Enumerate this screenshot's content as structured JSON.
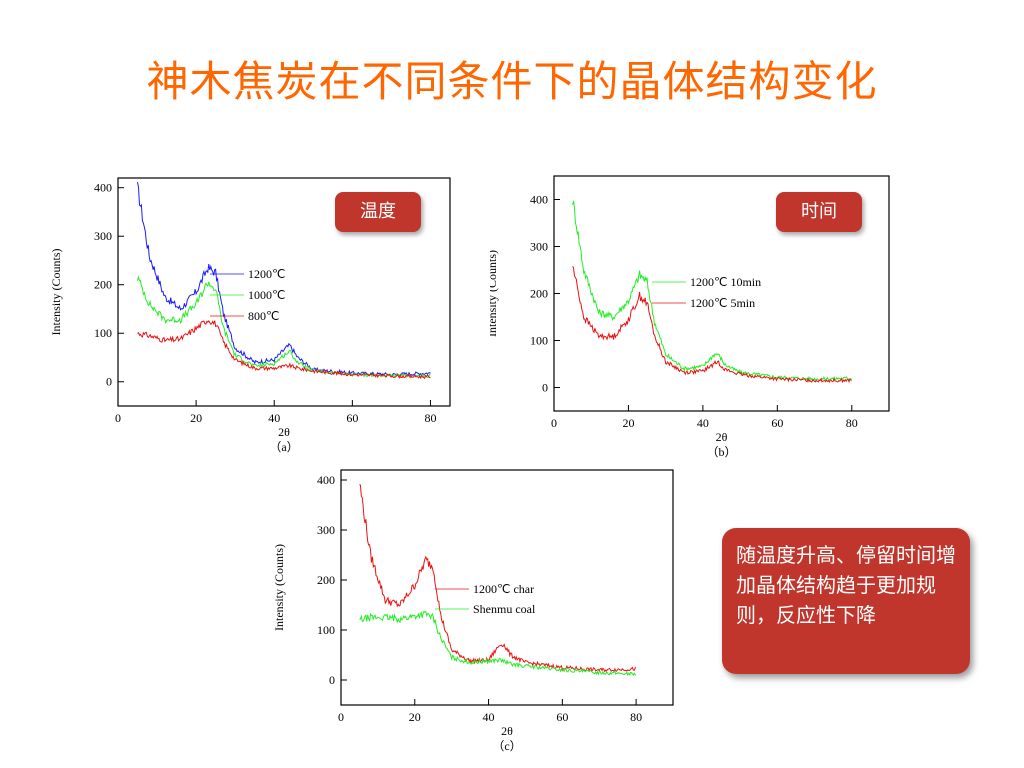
{
  "slide": {
    "title": "神木焦炭在不同条件下的晶体结构变化",
    "conclusion": "随温度升高、停留时间增加晶体结构趋于更加规则，反应性下降"
  },
  "colors": {
    "title": "#ff6600",
    "badge": "#c0362c",
    "blue": "#1a1aff",
    "green": "#22ee22",
    "red": "#ee1111"
  },
  "chart_data": [
    {
      "type": "line",
      "panel": "（a）",
      "badge": "温度",
      "xlabel": "2θ",
      "ylabel": "Intensity (Counts)",
      "xlim": [
        0,
        85
      ],
      "ylim": [
        -50,
        420
      ],
      "xticks": [
        0,
        20,
        40,
        60,
        80
      ],
      "yticks": [
        0,
        100,
        200,
        300,
        400
      ],
      "series": [
        {
          "name": "1200℃",
          "color": "#1a1aff",
          "x": [
            5,
            8,
            12,
            16,
            20,
            23,
            25,
            27,
            30,
            35,
            40,
            43,
            44,
            46,
            50,
            60,
            70,
            80
          ],
          "y": [
            400,
            260,
            175,
            150,
            185,
            235,
            225,
            140,
            70,
            40,
            45,
            70,
            75,
            50,
            25,
            18,
            15,
            18
          ]
        },
        {
          "name": "1000℃",
          "color": "#22ee22",
          "x": [
            5,
            8,
            12,
            16,
            20,
            23,
            25,
            27,
            30,
            35,
            40,
            43,
            44,
            46,
            50,
            60,
            70,
            80
          ],
          "y": [
            215,
            160,
            128,
            128,
            160,
            205,
            190,
            110,
            55,
            32,
            38,
            58,
            62,
            40,
            22,
            15,
            12,
            12
          ]
        },
        {
          "name": "800℃",
          "color": "#ee1111",
          "x": [
            5,
            8,
            12,
            16,
            20,
            23,
            25,
            27,
            30,
            35,
            40,
            43,
            44,
            46,
            50,
            60,
            70,
            80
          ],
          "y": [
            100,
            95,
            85,
            88,
            110,
            128,
            120,
            82,
            45,
            28,
            28,
            32,
            33,
            28,
            22,
            15,
            12,
            10
          ]
        }
      ]
    },
    {
      "type": "line",
      "panel": "（b）",
      "badge": "时间",
      "xlabel": "2θ",
      "ylabel": "Intensity (Counts)",
      "xlim": [
        0,
        90
      ],
      "ylim": [
        -50,
        450
      ],
      "xticks": [
        0,
        20,
        40,
        60,
        80
      ],
      "yticks": [
        0,
        100,
        200,
        300,
        400
      ],
      "series": [
        {
          "name": "1200℃ 10min",
          "color": "#22ee22",
          "x": [
            5,
            8,
            12,
            16,
            20,
            23,
            25,
            27,
            30,
            35,
            40,
            43,
            44,
            46,
            50,
            60,
            70,
            80
          ],
          "y": [
            400,
            250,
            160,
            150,
            185,
            240,
            225,
            140,
            70,
            40,
            45,
            70,
            72,
            48,
            32,
            22,
            18,
            20
          ]
        },
        {
          "name": "1200℃  5min",
          "color": "#ee1111",
          "x": [
            5,
            8,
            12,
            16,
            20,
            23,
            25,
            27,
            30,
            35,
            40,
            43,
            44,
            46,
            50,
            60,
            70,
            80
          ],
          "y": [
            260,
            150,
            110,
            108,
            145,
            195,
            180,
            110,
            55,
            32,
            35,
            50,
            55,
            38,
            28,
            18,
            15,
            15
          ]
        }
      ]
    },
    {
      "type": "line",
      "panel": "（c）",
      "xlabel": "2θ",
      "ylabel": "Intensity (Counts)",
      "xlim": [
        0,
        90
      ],
      "ylim": [
        -50,
        420
      ],
      "xticks": [
        0,
        20,
        40,
        60,
        80
      ],
      "yticks": [
        0,
        100,
        200,
        300,
        400
      ],
      "series": [
        {
          "name": "1200℃ char",
          "color": "#ee1111",
          "x": [
            5,
            8,
            12,
            16,
            20,
            23,
            25,
            27,
            30,
            35,
            40,
            43,
            44,
            46,
            50,
            60,
            70,
            80
          ],
          "y": [
            395,
            250,
            160,
            150,
            190,
            240,
            225,
            130,
            60,
            38,
            40,
            70,
            72,
            50,
            35,
            25,
            20,
            22
          ]
        },
        {
          "name": "Shenmu coal",
          "color": "#22ee22",
          "x": [
            5,
            8,
            12,
            16,
            20,
            23,
            25,
            27,
            30,
            35,
            40,
            43,
            44,
            46,
            50,
            60,
            70,
            80
          ],
          "y": [
            120,
            125,
            125,
            122,
            128,
            132,
            125,
            85,
            45,
            35,
            38,
            40,
            38,
            32,
            28,
            20,
            15,
            12
          ]
        }
      ]
    }
  ]
}
